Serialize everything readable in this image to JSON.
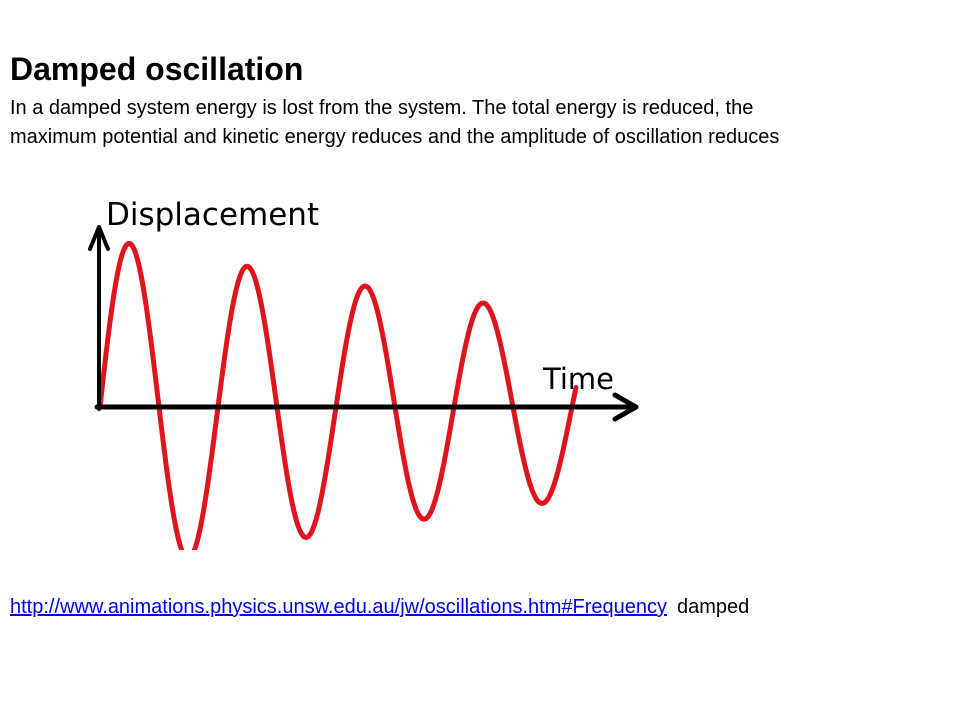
{
  "slide": {
    "title": "Damped oscillation",
    "body_lines": [
      "In a damped system energy is lost  from the system.   The total energy is reduced,   the",
      "maximum potential and kinetic energy reduces and the amplitude of oscillation reduces"
    ]
  },
  "figure": {
    "y_axis_label": "Displacement",
    "x_axis_label": "Time",
    "curve_color": "#e0141c",
    "axis_color": "#000000",
    "curve_description": "damped sine wave"
  },
  "footer": {
    "link_text": "http://www.animations.physics.unsw.edu.au/jw/oscillations.htm#Frequency",
    "caption": "damped",
    "link_color": "#0000ee"
  }
}
